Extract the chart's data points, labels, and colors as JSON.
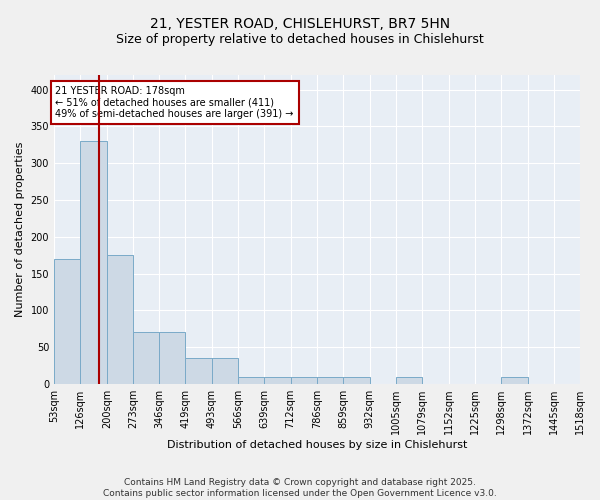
{
  "title_line1": "21, YESTER ROAD, CHISLEHURST, BR7 5HN",
  "title_line2": "Size of property relative to detached houses in Chislehurst",
  "xlabel": "Distribution of detached houses by size in Chislehurst",
  "ylabel": "Number of detached properties",
  "bar_color": "#cdd9e5",
  "bar_edge_color": "#7aaac8",
  "background_color": "#e8eef5",
  "grid_color": "#ffffff",
  "fig_background": "#f0f0f0",
  "vline_x": 178,
  "vline_color": "#aa0000",
  "annotation_text": "21 YESTER ROAD: 178sqm\n← 51% of detached houses are smaller (411)\n49% of semi-detached houses are larger (391) →",
  "annotation_box_edgecolor": "#aa0000",
  "bin_edges": [
    53,
    126,
    200,
    273,
    346,
    419,
    493,
    566,
    639,
    712,
    786,
    859,
    932,
    1005,
    1079,
    1152,
    1225,
    1298,
    1372,
    1445,
    1518
  ],
  "bar_heights": [
    170,
    330,
    175,
    70,
    70,
    35,
    35,
    10,
    10,
    10,
    10,
    10,
    0,
    10,
    0,
    0,
    0,
    10,
    0,
    0
  ],
  "ylim": [
    0,
    420
  ],
  "yticks": [
    0,
    50,
    100,
    150,
    200,
    250,
    300,
    350,
    400
  ],
  "footer_text": "Contains HM Land Registry data © Crown copyright and database right 2025.\nContains public sector information licensed under the Open Government Licence v3.0.",
  "title_fontsize": 10,
  "subtitle_fontsize": 9,
  "axis_label_fontsize": 8,
  "tick_fontsize": 7,
  "annotation_fontsize": 7,
  "footer_fontsize": 6.5
}
